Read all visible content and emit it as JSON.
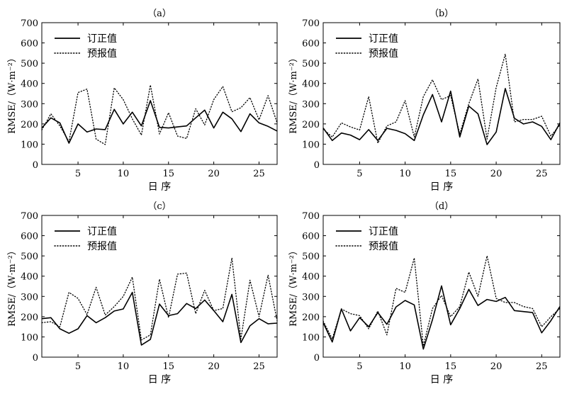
{
  "chart_data": [
    {
      "type": "line",
      "panel_label": "（a）",
      "xlabel": "日 序",
      "ylabel": "RMSE/（W·m⁻²）",
      "xlim": [
        1,
        27
      ],
      "ylim": [
        0,
        700
      ],
      "x_ticks": [
        5,
        10,
        15,
        20,
        25
      ],
      "y_ticks": [
        0,
        100,
        200,
        300,
        400,
        500,
        600,
        700
      ],
      "legend_position": "top-left",
      "x": [
        1,
        2,
        3,
        4,
        5,
        6,
        7,
        8,
        9,
        10,
        11,
        12,
        13,
        14,
        15,
        16,
        17,
        18,
        19,
        20,
        21,
        22,
        23,
        24,
        25,
        26,
        27
      ],
      "series": [
        {
          "name": "订正值",
          "style": "solid",
          "values": [
            180,
            230,
            205,
            105,
            200,
            160,
            175,
            172,
            272,
            200,
            258,
            190,
            315,
            183,
            180,
            185,
            190,
            230,
            268,
            180,
            258,
            225,
            162,
            250,
            205,
            188,
            165
          ]
        },
        {
          "name": "预报值",
          "style": "dotted",
          "values": [
            170,
            250,
            190,
            112,
            355,
            372,
            125,
            98,
            378,
            320,
            225,
            145,
            392,
            150,
            255,
            140,
            128,
            275,
            195,
            320,
            385,
            260,
            280,
            330,
            220,
            340,
            205
          ]
        }
      ]
    },
    {
      "type": "line",
      "panel_label": "（b）",
      "xlabel": "日 序",
      "ylabel": "RMSE/（W·m⁻²）",
      "xlim": [
        1,
        27
      ],
      "ylim": [
        0,
        700
      ],
      "x_ticks": [
        5,
        10,
        15,
        20,
        25
      ],
      "y_ticks": [
        0,
        100,
        200,
        300,
        400,
        500,
        600,
        700
      ],
      "legend_position": "top-left",
      "x": [
        1,
        2,
        3,
        4,
        5,
        6,
        7,
        8,
        9,
        10,
        11,
        12,
        13,
        14,
        15,
        16,
        17,
        18,
        19,
        20,
        21,
        22,
        23,
        24,
        25,
        26,
        27
      ],
      "series": [
        {
          "name": "订正值",
          "style": "solid",
          "values": [
            180,
            118,
            155,
            145,
            122,
            172,
            118,
            178,
            168,
            152,
            118,
            245,
            345,
            210,
            362,
            135,
            288,
            250,
            98,
            160,
            375,
            228,
            200,
            210,
            188,
            122,
            205
          ]
        },
        {
          "name": "预报值",
          "style": "dotted",
          "values": [
            175,
            135,
            205,
            185,
            170,
            335,
            105,
            190,
            210,
            315,
            135,
            335,
            418,
            320,
            340,
            150,
            300,
            422,
            125,
            380,
            545,
            210,
            222,
            222,
            238,
            140,
            195
          ]
        }
      ]
    },
    {
      "type": "line",
      "panel_label": "（c）",
      "xlabel": "日 序",
      "ylabel": "RMSE/（W·m⁻²）",
      "xlim": [
        1,
        27
      ],
      "ylim": [
        0,
        700
      ],
      "x_ticks": [
        5,
        10,
        15,
        20,
        25
      ],
      "y_ticks": [
        0,
        100,
        200,
        300,
        400,
        500,
        600,
        700
      ],
      "legend_position": "top-left",
      "x": [
        1,
        2,
        3,
        4,
        5,
        6,
        7,
        8,
        9,
        10,
        11,
        12,
        13,
        14,
        15,
        16,
        17,
        18,
        19,
        20,
        21,
        22,
        23,
        24,
        25,
        26,
        27
      ],
      "series": [
        {
          "name": "订正值",
          "style": "solid",
          "values": [
            190,
            195,
            140,
            118,
            140,
            205,
            170,
            195,
            228,
            238,
            320,
            60,
            88,
            262,
            205,
            215,
            265,
            240,
            282,
            230,
            175,
            310,
            72,
            155,
            190,
            165,
            168
          ]
        },
        {
          "name": "预报值",
          "style": "dotted",
          "values": [
            170,
            175,
            150,
            320,
            290,
            210,
            345,
            208,
            250,
            300,
            395,
            85,
            110,
            385,
            195,
            410,
            415,
            215,
            330,
            230,
            240,
            490,
            90,
            380,
            200,
            405,
            180
          ]
        }
      ]
    },
    {
      "type": "line",
      "panel_label": "（d）",
      "xlabel": "日 序",
      "ylabel": "RMSE/（W·m⁻²）",
      "xlim": [
        1,
        27
      ],
      "ylim": [
        0,
        700
      ],
      "x_ticks": [
        5,
        10,
        15,
        20,
        25
      ],
      "y_ticks": [
        0,
        100,
        200,
        300,
        400,
        500,
        600,
        700
      ],
      "legend_position": "top-left",
      "x": [
        1,
        2,
        3,
        4,
        5,
        6,
        7,
        8,
        9,
        10,
        11,
        12,
        13,
        14,
        15,
        16,
        17,
        18,
        19,
        20,
        21,
        22,
        23,
        24,
        25,
        26,
        27
      ],
      "series": [
        {
          "name": "订正值",
          "style": "solid",
          "values": [
            170,
            75,
            238,
            130,
            195,
            150,
            220,
            162,
            248,
            280,
            258,
            40,
            185,
            352,
            160,
            240,
            335,
            255,
            285,
            275,
            295,
            230,
            225,
            220,
            120,
            180,
            250
          ]
        },
        {
          "name": "预报值",
          "style": "dotted",
          "values": [
            178,
            90,
            238,
            215,
            205,
            140,
            228,
            110,
            340,
            320,
            490,
            55,
            240,
            305,
            200,
            250,
            420,
            300,
            500,
            290,
            270,
            270,
            250,
            240,
            150,
            200,
            240
          ]
        }
      ]
    }
  ]
}
